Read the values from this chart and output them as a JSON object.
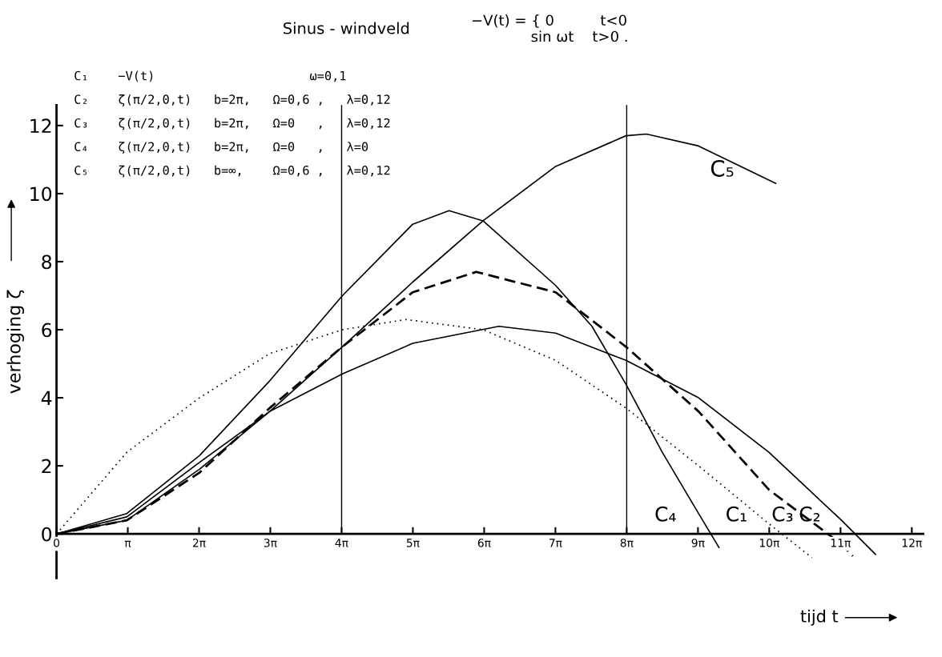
{
  "chart_data": {
    "type": "line",
    "title": "Sinus - windveld",
    "subtitle": "−V(t) = { 0          t<0\n             sin ωt    t>0 .",
    "xlabel": "tijd t",
    "ylabel": "verhoging ζ",
    "annotations": [
      "C₁    −V(t)                     ω=0,1",
      "C₂    ζ(π/2,0,t)   b=2π,   Ω=0,6 ,   λ=0,12",
      "C₃    ζ(π/2,0,t)   b=2π,   Ω=0   ,   λ=0,12",
      "C₄    ζ(π/2,0,t)   b=2π,   Ω=0   ,   λ=0",
      "C₅    ζ(π/2,0,t)   b=∞,    Ω=0,6 ,   λ=0,12"
    ],
    "xlim": [
      0,
      38.2
    ],
    "ylim": [
      -1.3,
      12.6
    ],
    "xticks": [
      0,
      {
        "value": 3.1416,
        "label": "π"
      },
      {
        "value": 6.2832,
        "label": "2π"
      },
      {
        "value": 9.4248,
        "label": "3π"
      },
      {
        "value": 12.5664,
        "label": "4π"
      },
      {
        "value": 15.708,
        "label": "5π"
      },
      {
        "value": 18.8496,
        "label": "6π"
      },
      {
        "value": 21.9911,
        "label": "7π"
      },
      {
        "value": 25.1327,
        "label": "8π"
      },
      {
        "value": 28.2743,
        "label": "9π"
      },
      {
        "value": 31.4159,
        "label": "10π"
      },
      {
        "value": 34.5575,
        "label": "11π"
      },
      {
        "value": 37.6991,
        "label": "12π"
      }
    ],
    "yticks": [
      0,
      2,
      4,
      6,
      8,
      10,
      12
    ],
    "grid": false,
    "legend": false,
    "marker": "none",
    "ref_lines": [
      {
        "axis": "x",
        "value": 12.5664,
        "color": "#000000"
      },
      {
        "axis": "x",
        "value": 25.1327,
        "color": "#000000"
      }
    ],
    "series": [
      {
        "name": "C₁",
        "color": "#000000",
        "line_style": "dotted",
        "x": [
          0,
          3.1,
          6.3,
          9.4,
          12.6,
          15.4,
          18.8,
          22.0,
          25.1,
          28.3,
          31.4,
          33.3
        ],
        "values": [
          0,
          2.4,
          4.0,
          5.3,
          6.0,
          6.3,
          6.0,
          5.1,
          3.7,
          2.0,
          0.3,
          -0.7
        ]
      },
      {
        "name": "C₂",
        "color": "#000000",
        "line_style": "solid",
        "x": [
          0,
          3.1,
          6.3,
          9.4,
          12.6,
          15.7,
          19.5,
          22.0,
          25.1,
          28.3,
          31.4,
          34.6,
          36.1
        ],
        "values": [
          0,
          0.4,
          1.9,
          3.6,
          4.7,
          5.6,
          6.1,
          5.9,
          5.1,
          4.0,
          2.4,
          0.4,
          -0.6
        ]
      },
      {
        "name": "C₃",
        "color": "#000000",
        "line_style": "dashed",
        "x": [
          0,
          3.1,
          6.3,
          9.4,
          12.6,
          15.7,
          18.5,
          22.0,
          25.1,
          28.3,
          31.4,
          34.6,
          35.1
        ],
        "values": [
          0,
          0.4,
          1.8,
          3.7,
          5.5,
          7.1,
          7.7,
          7.1,
          5.5,
          3.6,
          1.3,
          -0.3,
          -0.65
        ]
      },
      {
        "name": "C₄",
        "color": "#000000",
        "line_style": "solid",
        "x": [
          0,
          3.1,
          6.3,
          9.4,
          12.6,
          15.7,
          17.3,
          18.8,
          22.0,
          23.6,
          25.1,
          26.7,
          28.3,
          29.2
        ],
        "values": [
          0,
          0.6,
          2.3,
          4.5,
          7.0,
          9.1,
          9.5,
          9.2,
          7.3,
          6.1,
          4.4,
          2.4,
          0.6,
          -0.4
        ]
      },
      {
        "name": "C₅",
        "color": "#000000",
        "line_style": "solid",
        "x": [
          0,
          3.1,
          6.3,
          9.4,
          12.6,
          15.7,
          18.8,
          22.0,
          25.1,
          26.0,
          28.3,
          31.7
        ],
        "values": [
          0,
          0.5,
          2.1,
          3.6,
          5.5,
          7.4,
          9.2,
          10.8,
          11.7,
          11.75,
          11.4,
          10.3
        ]
      }
    ]
  }
}
